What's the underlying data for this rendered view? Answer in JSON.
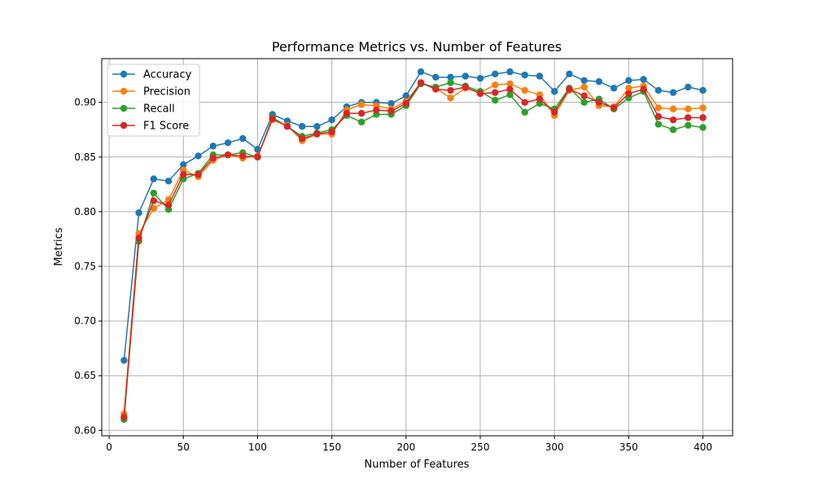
{
  "chart_data": {
    "type": "line",
    "title": "Performance Metrics vs. Number of Features",
    "xlabel": "Number of Features",
    "ylabel": "Metrics",
    "xlim": [
      -5,
      420
    ],
    "ylim": [
      0.595,
      0.94
    ],
    "grid": true,
    "legend_position": "upper-left",
    "x_ticks": [
      0,
      50,
      100,
      150,
      200,
      250,
      300,
      350,
      400
    ],
    "y_ticks": [
      0.6,
      0.65,
      0.7,
      0.75,
      0.8,
      0.85,
      0.9
    ],
    "x_tick_labels": [
      "0",
      "50",
      "100",
      "150",
      "200",
      "250",
      "300",
      "350",
      "400"
    ],
    "y_tick_labels": [
      "0.60",
      "0.65",
      "0.70",
      "0.75",
      "0.80",
      "0.85",
      "0.90"
    ],
    "x": [
      10,
      20,
      30,
      40,
      50,
      60,
      70,
      80,
      90,
      100,
      110,
      120,
      130,
      140,
      150,
      160,
      170,
      180,
      190,
      200,
      210,
      220,
      230,
      240,
      250,
      260,
      270,
      280,
      290,
      300,
      310,
      320,
      330,
      340,
      350,
      360,
      370,
      380,
      390,
      400
    ],
    "series": [
      {
        "name": "Accuracy",
        "color": "#1f77b4",
        "values": [
          0.664,
          0.799,
          0.83,
          0.828,
          0.843,
          0.851,
          0.86,
          0.863,
          0.867,
          0.857,
          0.889,
          0.883,
          0.878,
          0.878,
          0.884,
          0.896,
          0.9,
          0.9,
          0.899,
          0.906,
          0.928,
          0.923,
          0.923,
          0.924,
          0.922,
          0.926,
          0.928,
          0.925,
          0.924,
          0.91,
          0.926,
          0.92,
          0.919,
          0.913,
          0.92,
          0.921,
          0.911,
          0.909,
          0.914,
          0.911
        ]
      },
      {
        "name": "Precision",
        "color": "#ff7f0e",
        "values": [
          0.615,
          0.78,
          0.803,
          0.811,
          0.838,
          0.832,
          0.847,
          0.852,
          0.849,
          0.851,
          0.884,
          0.879,
          0.865,
          0.871,
          0.871,
          0.893,
          0.898,
          0.897,
          0.894,
          0.901,
          0.918,
          0.913,
          0.904,
          0.913,
          0.909,
          0.916,
          0.917,
          0.911,
          0.907,
          0.888,
          0.911,
          0.914,
          0.897,
          0.896,
          0.913,
          0.915,
          0.895,
          0.894,
          0.894,
          0.895
        ]
      },
      {
        "name": "Recall",
        "color": "#2ca02c",
        "values": [
          0.61,
          0.773,
          0.817,
          0.802,
          0.83,
          0.835,
          0.852,
          0.852,
          0.854,
          0.85,
          0.886,
          0.878,
          0.869,
          0.872,
          0.875,
          0.888,
          0.882,
          0.889,
          0.889,
          0.897,
          0.917,
          0.914,
          0.918,
          0.915,
          0.91,
          0.902,
          0.907,
          0.891,
          0.899,
          0.894,
          0.913,
          0.9,
          0.903,
          0.894,
          0.904,
          0.91,
          0.88,
          0.875,
          0.879,
          0.877
        ]
      },
      {
        "name": "F1 Score",
        "color": "#d62728",
        "values": [
          0.612,
          0.776,
          0.81,
          0.806,
          0.834,
          0.834,
          0.849,
          0.852,
          0.851,
          0.85,
          0.885,
          0.878,
          0.867,
          0.871,
          0.873,
          0.89,
          0.89,
          0.893,
          0.892,
          0.899,
          0.918,
          0.912,
          0.911,
          0.914,
          0.908,
          0.909,
          0.912,
          0.9,
          0.903,
          0.891,
          0.912,
          0.906,
          0.9,
          0.895,
          0.908,
          0.912,
          0.887,
          0.884,
          0.886,
          0.886
        ]
      }
    ]
  }
}
